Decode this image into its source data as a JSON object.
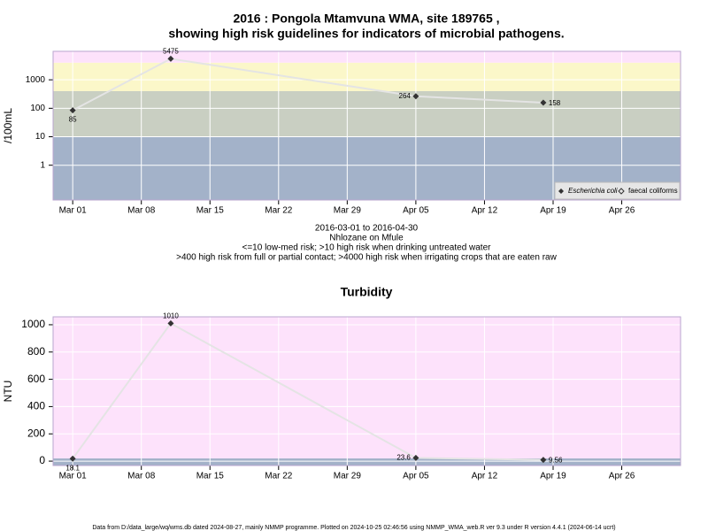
{
  "chart_data": [
    {
      "type": "line",
      "title": [
        "2016 : Pongola Mtamvuna WMA, site 189765 ,",
        "showing high risk guidelines for indicators of microbial pathogens."
      ],
      "ylabel": "/100mL",
      "log_scale": true,
      "ylim": [
        0.06,
        10000
      ],
      "yticks": [
        1,
        10,
        100,
        1000
      ],
      "band_breaks": [
        10,
        400,
        4000
      ],
      "band_colors": [
        "#a3b2c9",
        "#c9cfc2",
        "#fbf7c9",
        "#fde2fb"
      ],
      "xlim": [
        "2016-02-28",
        "2016-05-02"
      ],
      "xticks": [
        {
          "value": "2016-03-01",
          "label": "Mar 01"
        },
        {
          "value": "2016-03-08",
          "label": "Mar 08"
        },
        {
          "value": "2016-03-15",
          "label": "Mar 15"
        },
        {
          "value": "2016-03-22",
          "label": "Mar 22"
        },
        {
          "value": "2016-03-29",
          "label": "Mar 29"
        },
        {
          "value": "2016-04-05",
          "label": "Apr 05"
        },
        {
          "value": "2016-04-12",
          "label": "Apr 12"
        },
        {
          "value": "2016-04-19",
          "label": "Apr 19"
        },
        {
          "value": "2016-04-26",
          "label": "Apr 26"
        }
      ],
      "x": [
        "2016-03-01",
        "2016-03-11",
        "2016-04-05",
        "2016-04-18"
      ],
      "series": [
        {
          "name": "Escherichia coli",
          "color": "#333333",
          "values": [
            85,
            5475,
            264,
            158
          ]
        }
      ],
      "legend": [
        "Escherichia coli",
        "faecal coliforms"
      ],
      "grid": true,
      "notes": [
        "2016-03-01 to 2016-04-30",
        "Nhlozane on Mfule",
        "<=10 low-med risk; >10 high risk when drinking untreated water",
        ">400 high risk from full or partial contact; >4000 high risk when irrigating crops that are eaten raw"
      ]
    },
    {
      "type": "line",
      "title": [
        "Turbidity"
      ],
      "ylabel": "NTU",
      "log_scale": false,
      "ylim": [
        -32,
        1058
      ],
      "yticks": [
        0,
        200,
        400,
        600,
        800,
        1000
      ],
      "band_breaks": [
        20
      ],
      "band_colors": [
        "#a3b2c9",
        "#fde2fb"
      ],
      "xlim": [
        "2016-02-28",
        "2016-05-02"
      ],
      "xticks": [
        {
          "value": "2016-03-01",
          "label": "Mar 01"
        },
        {
          "value": "2016-03-08",
          "label": "Mar 08"
        },
        {
          "value": "2016-03-15",
          "label": "Mar 15"
        },
        {
          "value": "2016-03-22",
          "label": "Mar 22"
        },
        {
          "value": "2016-03-29",
          "label": "Mar 29"
        },
        {
          "value": "2016-04-05",
          "label": "Apr 05"
        },
        {
          "value": "2016-04-12",
          "label": "Apr 12"
        },
        {
          "value": "2016-04-19",
          "label": "Apr 19"
        },
        {
          "value": "2016-04-26",
          "label": "Apr 26"
        }
      ],
      "x": [
        "2016-03-01",
        "2016-03-11",
        "2016-04-05",
        "2016-04-18"
      ],
      "series": [
        {
          "name": "Turbidity",
          "color": "#333333",
          "values": [
            18.1,
            1010,
            23.6,
            9.56
          ]
        }
      ],
      "grid": true
    }
  ],
  "footer": "Data from D:/data_large/wq/wms.db dated 2024-08-27, mainly NMMP programme. Plotted on 2024-10-25 02:46:56 using NMMP_WMA_web.R ver 9.3 under R version 4.4.1 (2024-06-14 ucrt)"
}
